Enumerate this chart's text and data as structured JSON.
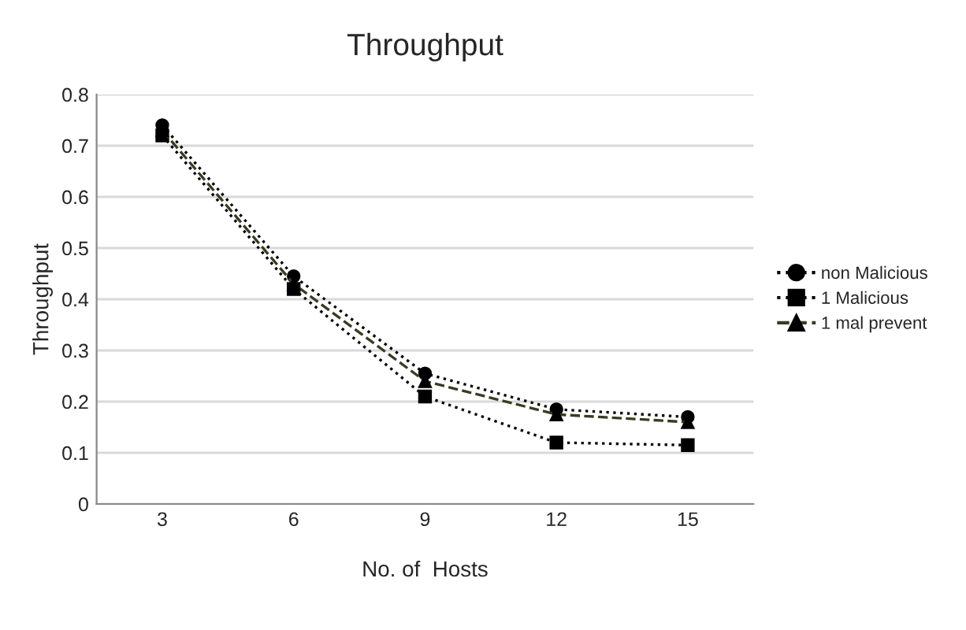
{
  "chart_data": {
    "type": "line",
    "title": "Throughput",
    "xlabel": "No. of  Hosts",
    "ylabel": "Throughput",
    "categories": [
      "3",
      "6",
      "9",
      "12",
      "15"
    ],
    "series": [
      {
        "name": "non Malicious",
        "color": "#000000",
        "marker": "circle",
        "line_style": "dotted",
        "values": [
          0.74,
          0.445,
          0.255,
          0.185,
          0.17
        ]
      },
      {
        "name": "1 Malicious",
        "color": "#000000",
        "marker": "square",
        "line_style": "dotted",
        "values": [
          0.72,
          0.42,
          0.21,
          0.12,
          0.115
        ]
      },
      {
        "name": "1 mal prevent",
        "color": "#3b3b22",
        "marker": "triangle",
        "line_style": "dashed",
        "values": [
          0.73,
          0.43,
          0.24,
          0.175,
          0.16
        ]
      }
    ],
    "ylim": [
      0,
      0.8
    ],
    "yticks": [
      "0",
      0.1,
      0.2,
      0.3,
      0.4,
      0.5,
      0.6,
      0.7,
      0.8
    ],
    "grid": "y",
    "legend": "right"
  }
}
